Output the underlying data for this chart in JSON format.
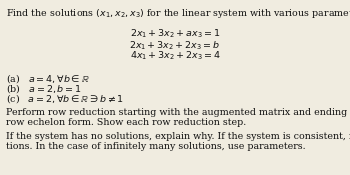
{
  "background_color": "#f0ece0",
  "title_line": "Find the solutions $(x_1, x_2, x_3)$ for the linear system with various parameters $(a, b)$.",
  "equations": [
    "$2x_1 + 3x_2 + ax_3 = 1$",
    "$2x_1 + 3x_2 + 2x_3 = b$",
    "$4x_1 + 3x_2 + 2x_3 = 4$"
  ],
  "parts": [
    "(a)   $a = 4, \\forall b \\in \\mathbb{R}$",
    "(b)   $a = 2, b = 1$",
    "(c)   $a = 2, \\forall b \\in \\mathbb{R} \\ni b \\neq 1$"
  ],
  "paragraph1_line1": "Perform row reduction starting with the augmented matrix and ending with reduced",
  "paragraph1_line2": "row echelon form. Show each row reduction step.",
  "paragraph2_line1": "If the system has no solutions, explain why. If the system is consistent, find all solu-",
  "paragraph2_line2": "tions. In the case of infinitely many solutions, use parameters.",
  "font_size": 6.8,
  "text_color": "#111111"
}
